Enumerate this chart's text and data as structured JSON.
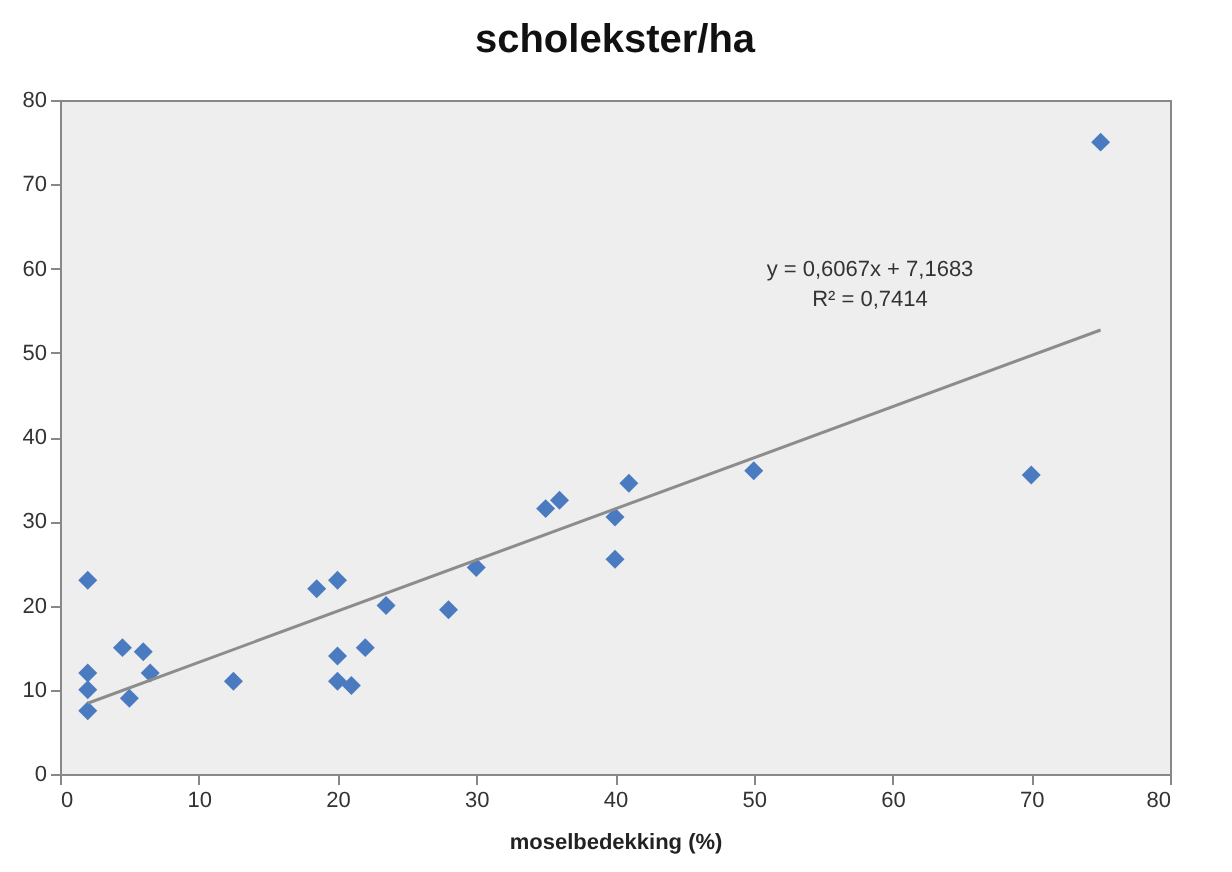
{
  "chart_data": {
    "type": "scatter",
    "title": "scholekster/ha",
    "xlabel": "moselbedekking (%)",
    "xlim": [
      0,
      80
    ],
    "xticks": [
      0,
      10,
      20,
      30,
      40,
      50,
      60,
      70,
      80
    ],
    "ylim": [
      0,
      80
    ],
    "yticks": [
      0,
      10,
      20,
      30,
      40,
      50,
      60,
      70,
      80
    ],
    "grid": false,
    "annotations": [
      "y = 0,6067x + 7,1683",
      "R² = 0,7414"
    ],
    "series": [
      {
        "marker": "diamond",
        "color": "#4a7bc0",
        "x": [
          2,
          2,
          2,
          2,
          4.5,
          5,
          6,
          6.5,
          12.5,
          18.5,
          20,
          20,
          20,
          21,
          22,
          23.5,
          28,
          30,
          35,
          36,
          40,
          40,
          41,
          50,
          70,
          75
        ],
        "values": [
          23,
          12,
          10,
          7.5,
          15,
          9,
          14.5,
          12,
          11,
          22,
          23,
          14,
          11,
          10.5,
          15,
          20,
          19.5,
          24.5,
          31.5,
          32.5,
          30.5,
          25.5,
          34.5,
          36,
          35.5,
          75
        ]
      },
      {
        "type": "line",
        "marker": "none",
        "color": "#8c8c8c",
        "x": [
          2,
          75
        ],
        "values": [
          8.4,
          52.7
        ]
      }
    ]
  }
}
